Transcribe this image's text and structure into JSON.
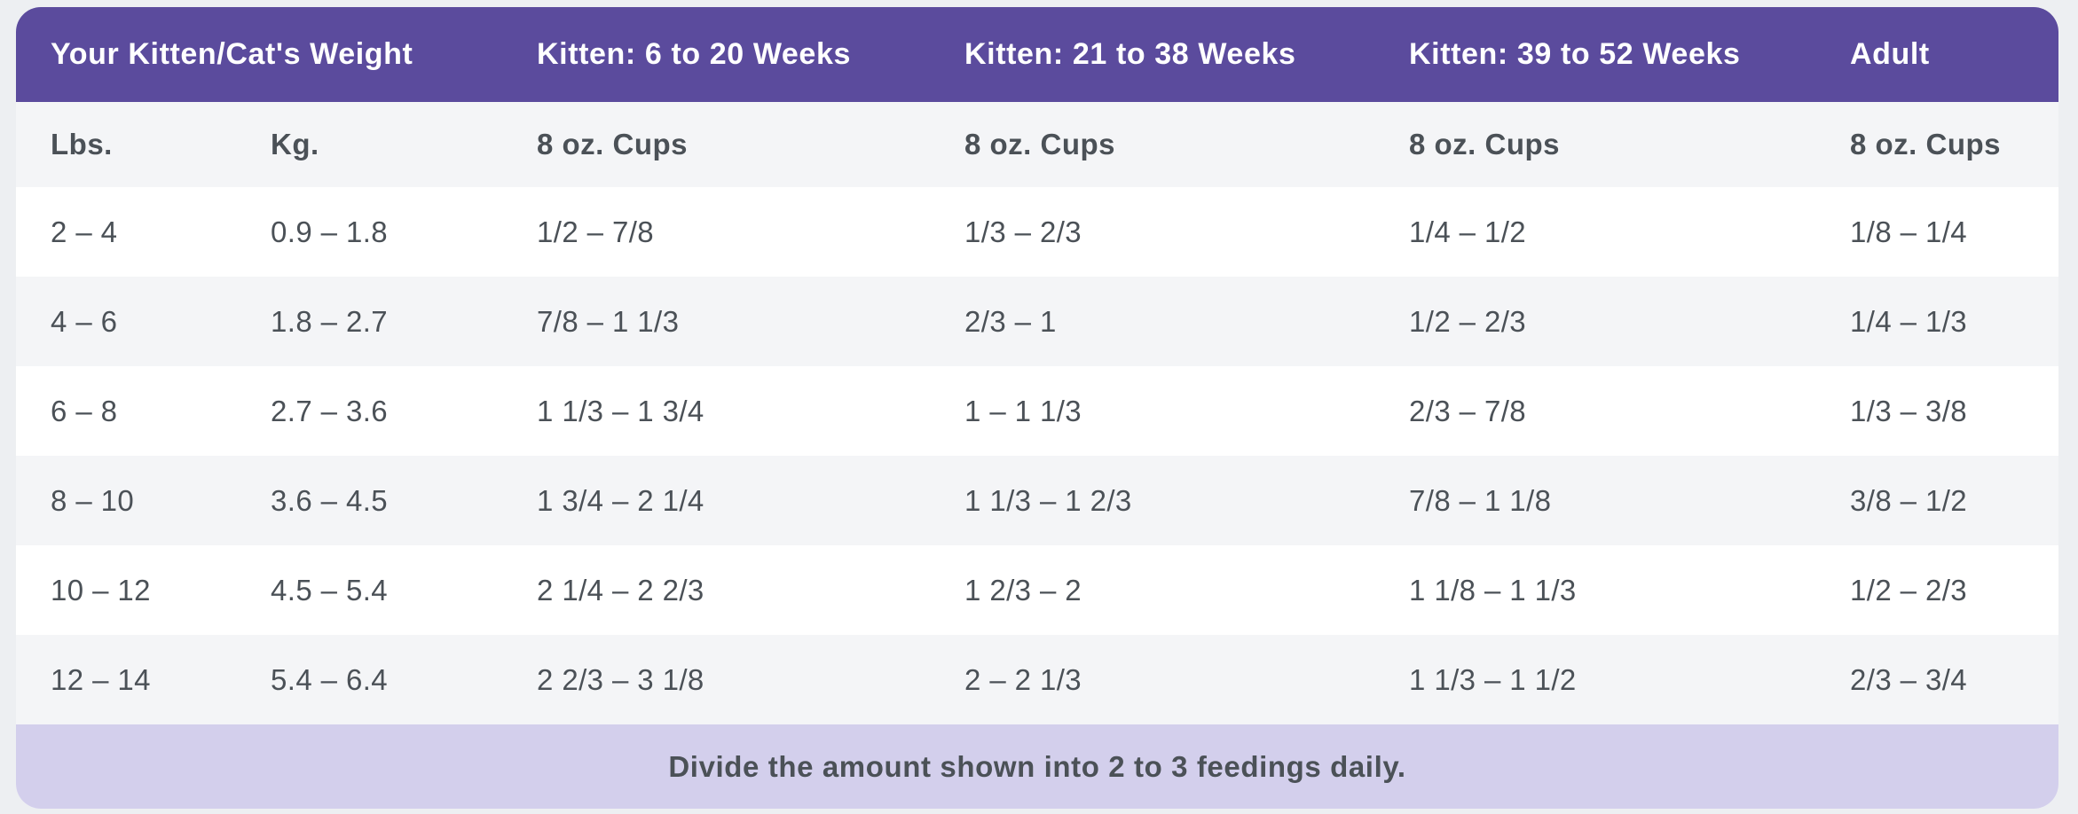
{
  "accent_colors": {
    "header_purple": "#5b4b9d",
    "footer_lavender": "#d3cfec",
    "stripe_gray": "#f4f5f7",
    "row_white": "#ffffff",
    "text_dark": "#4b5157",
    "text_light": "#ffffff",
    "page_background": "#edeff2"
  },
  "table": {
    "header_groups": [
      {
        "label": "Your Kitten/Cat's Weight"
      },
      {
        "label": "Kitten: 6 to 20 Weeks"
      },
      {
        "label": "Kitten: 21 to 38 Weeks"
      },
      {
        "label": "Kitten: 39 to 52 Weeks"
      },
      {
        "label": "Adult"
      }
    ],
    "subheaders": [
      "Lbs.",
      "Kg.",
      "8 oz. Cups",
      "8 oz. Cups",
      "8 oz. Cups",
      "8 oz. Cups"
    ],
    "rows": [
      [
        "2 – 4",
        "0.9 – 1.8",
        "1/2 – 7/8",
        "1/3 – 2/3",
        "1/4 – 1/2",
        "1/8 – 1/4"
      ],
      [
        "4 – 6",
        "1.8 – 2.7",
        "7/8 – 1 1/3",
        "2/3 – 1",
        "1/2 – 2/3",
        "1/4 – 1/3"
      ],
      [
        "6 – 8",
        "2.7 – 3.6",
        "1 1/3 – 1 3/4",
        "1 – 1 1/3",
        "2/3 – 7/8",
        "1/3 – 3/8"
      ],
      [
        "8 – 10",
        "3.6 – 4.5",
        "1 3/4 – 2 1/4",
        "1 1/3 – 1 2/3",
        "7/8 – 1 1/8",
        "3/8 – 1/2"
      ],
      [
        "10 – 12",
        "4.5 – 5.4",
        "2 1/4 – 2 2/3",
        "1 2/3 – 2",
        "1 1/8 – 1 1/3",
        "1/2 – 2/3"
      ],
      [
        "12 – 14",
        "5.4 – 6.4",
        "2 2/3 – 3 1/8",
        "2 – 2 1/3",
        "1 1/3 – 1 1/2",
        "2/3 – 3/4"
      ]
    ],
    "footer_note": "Divide the amount shown into 2 to 3 feedings daily."
  },
  "chart_data": {
    "type": "table",
    "title": "Kitten/Cat daily feeding amounts",
    "column_groups": [
      "Your Kitten/Cat's Weight",
      "Kitten: 6 to 20 Weeks",
      "Kitten: 21 to 38 Weeks",
      "Kitten: 39 to 52 Weeks",
      "Adult"
    ],
    "columns": [
      "Lbs.",
      "Kg.",
      "8 oz. Cups",
      "8 oz. Cups",
      "8 oz. Cups",
      "8 oz. Cups"
    ],
    "rows": [
      [
        "2 – 4",
        "0.9 – 1.8",
        "1/2 – 7/8",
        "1/3 – 2/3",
        "1/4 – 1/2",
        "1/8 – 1/4"
      ],
      [
        "4 – 6",
        "1.8 – 2.7",
        "7/8 – 1 1/3",
        "2/3 – 1",
        "1/2 – 2/3",
        "1/4 – 1/3"
      ],
      [
        "6 – 8",
        "2.7 – 3.6",
        "1 1/3 – 1 3/4",
        "1 – 1 1/3",
        "2/3 – 7/8",
        "1/3 – 3/8"
      ],
      [
        "8 – 10",
        "3.6 – 4.5",
        "1 3/4 – 2 1/4",
        "1 1/3 – 1 2/3",
        "7/8 – 1 1/8",
        "3/8 – 1/2"
      ],
      [
        "10 – 12",
        "4.5 – 5.4",
        "2 1/4 – 2 2/3",
        "1 2/3 – 2",
        "1 1/8 – 1 1/3",
        "1/2 – 2/3"
      ],
      [
        "12 – 14",
        "5.4 – 6.4",
        "2 2/3 – 3 1/8",
        "2 – 2 1/3",
        "1 1/3 – 1 1/2",
        "2/3 – 3/4"
      ]
    ],
    "annotation": "Divide the amount shown into 2 to 3 feedings daily."
  }
}
